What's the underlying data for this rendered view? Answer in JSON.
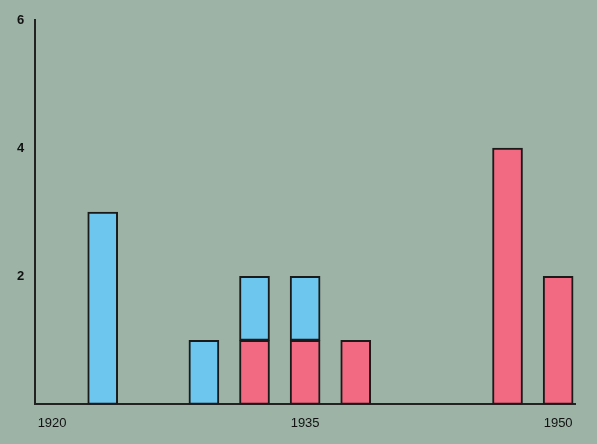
{
  "chart_data": {
    "type": "bar",
    "stacked": true,
    "x": [
      1923,
      1929,
      1932,
      1935,
      1938,
      1947,
      1950
    ],
    "series": [
      {
        "color": "#f26a82",
        "values": [
          null,
          null,
          1,
          1,
          1,
          4,
          2
        ]
      },
      {
        "color": "#6cc6ee",
        "values": [
          3,
          1,
          1,
          1,
          null,
          null,
          null
        ]
      }
    ],
    "xlim": [
      1919,
      1951
    ],
    "xticks": [
      1920,
      1935,
      1950
    ],
    "ylim": [
      0,
      6
    ],
    "yticks": [
      2,
      4,
      6
    ],
    "grid": false
  }
}
